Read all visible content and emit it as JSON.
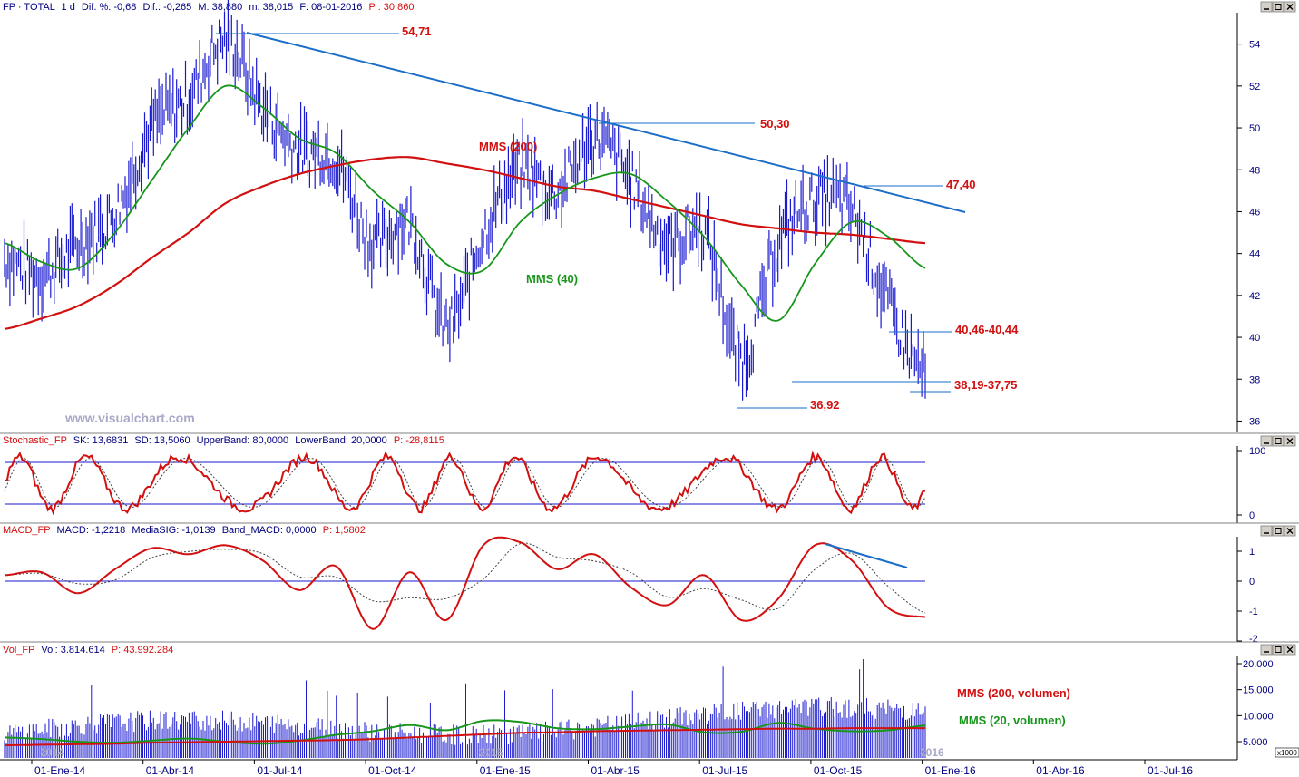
{
  "watermark": "www.visualchart.com",
  "colors": {
    "price": "#1a1ad0",
    "red": "#d21010",
    "green": "#18961c",
    "blue_line": "#1a6ec8",
    "axis_text": "#000080"
  },
  "price_panel": {
    "header": {
      "symbol": "FP · TOTAL",
      "period": "1 d",
      "dif_pct": "Dif. %: -0,68",
      "dif": "Dif.: -0,265",
      "max": "M: 38,880",
      "min": "m: 38,015",
      "date": "F: 08-01-2016",
      "p": "P : 30,860"
    },
    "y_ticks": [
      "54",
      "52",
      "50",
      "48",
      "46",
      "44",
      "42",
      "40",
      "38",
      "36"
    ],
    "annotations": {
      "lvl_5471": "54,71",
      "lvl_5030": "50,30",
      "lvl_4740": "47,40",
      "lvl_4046": "40,46-40,44",
      "lvl_3819": "38,19-37,75",
      "lvl_3692": "36,92",
      "mms200": "MMS (200)",
      "mms40": "MMS (40)"
    }
  },
  "stoch_panel": {
    "header": {
      "name": "Stochastic_FP",
      "sk": "SK: 13,6831",
      "sd": "SD: 13,5060",
      "upper": "UpperBand: 80,0000",
      "lower": "LowerBand: 20,0000",
      "p": "P: -28,8115"
    },
    "y_ticks": [
      "100",
      "0"
    ]
  },
  "macd_panel": {
    "header": {
      "name": "MACD_FP",
      "macd": "MACD: -1,2218",
      "sig": "MediaSIG: -1,0139",
      "band": "Band_MACD: 0,0000",
      "p": "P: 1,5802"
    },
    "y_ticks": [
      "1",
      "0",
      "-1",
      "-2"
    ]
  },
  "vol_panel": {
    "header": {
      "name": "Vol_FP",
      "vol": "Vol: 3.814.614",
      "p": "P: 43.992.284"
    },
    "y_ticks": [
      "20.000",
      "15.000",
      "10.000",
      "5.000"
    ],
    "unit": "x1000",
    "legend_200": "MMS (200, volumen)",
    "legend_20": "MMS (20, volumen)",
    "year_2015": "2015",
    "year_2016": "2016",
    "year_2014": "2014"
  },
  "x_axis": {
    "labels": [
      "01-Ene-14",
      "01-Abr-14",
      "01-Jul-14",
      "01-Oct-14",
      "01-Ene-15",
      "01-Abr-15",
      "01-Jul-15",
      "01-Oct-15",
      "01-Ene-16",
      "01-Abr-16",
      "01-Jul-16"
    ]
  },
  "chart_data": {
    "type": "line",
    "title": "",
    "x": [
      "2013-12",
      "2014-01",
      "2014-02",
      "2014-03",
      "2014-04",
      "2014-05",
      "2014-06",
      "2014-07",
      "2014-08",
      "2014-09",
      "2014-10",
      "2014-11",
      "2014-12",
      "2015-01",
      "2015-02",
      "2015-03",
      "2015-04",
      "2015-05",
      "2015-06",
      "2015-07",
      "2015-08",
      "2015-09",
      "2015-10",
      "2015-11",
      "2015-12",
      "2016-01"
    ],
    "series": [
      {
        "name": "FP",
        "values": [
          43.8,
          43.0,
          44.5,
          46.0,
          50.0,
          51.5,
          54.2,
          51.0,
          49.0,
          48.5,
          44.5,
          45.5,
          40.5,
          45.0,
          48.0,
          47.0,
          49.5,
          47.5,
          44.5,
          45.0,
          39.0,
          44.5,
          46.5,
          46.0,
          41.5,
          38.2
        ]
      },
      {
        "name": "MMS (200)",
        "values": [
          40.4,
          40.9,
          41.5,
          42.5,
          43.8,
          45.0,
          46.4,
          47.2,
          47.8,
          48.2,
          48.5,
          48.6,
          48.3,
          48.0,
          47.6,
          47.2,
          47.0,
          46.6,
          46.2,
          45.8,
          45.4,
          45.2,
          45.0,
          44.9,
          44.7,
          44.5
        ]
      },
      {
        "name": "MMS (40)",
        "values": [
          44.5,
          43.6,
          43.3,
          45.0,
          47.5,
          50.0,
          52.0,
          51.0,
          49.5,
          48.8,
          47.0,
          45.5,
          43.5,
          43.2,
          45.5,
          46.8,
          47.6,
          47.8,
          46.5,
          44.8,
          42.5,
          40.8,
          43.5,
          45.5,
          44.8,
          43.3
        ]
      }
    ],
    "ylim": [
      35.5,
      55.5
    ],
    "levels": [
      54.71,
      50.3,
      47.4,
      40.46,
      38.19,
      36.92
    ],
    "trendline": {
      "from": [
        "2014-06",
        54.71
      ],
      "to": [
        "2016-01",
        46.3
      ]
    }
  }
}
